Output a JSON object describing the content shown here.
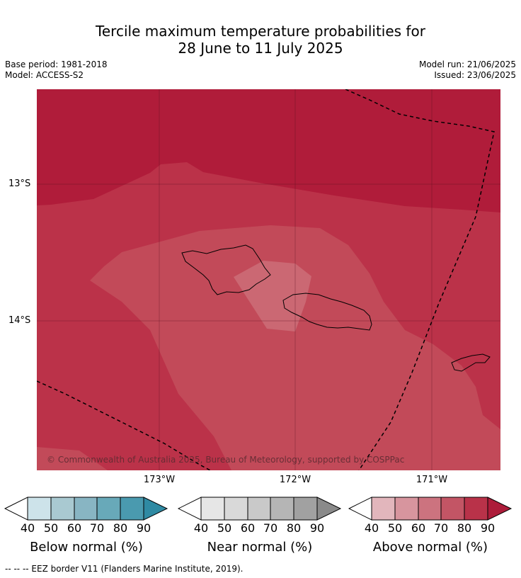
{
  "title_line1": "Tercile maximum temperature probabilities for",
  "title_line2": "28 June to 11 July 2025",
  "meta_left": [
    "Base period: 1981-2018",
    "Model: ACCESS-S2"
  ],
  "meta_right": [
    "Model run: 21/06/2025",
    "Issued: 23/06/2025"
  ],
  "copyright": "© Commonwealth of Australia 2025, Bureau of Meteorology, supported by COSPPac",
  "lat_labels": [
    "13°S",
    "14°S"
  ],
  "lon_labels": [
    "173°W",
    "172°W",
    "171°W"
  ],
  "colorbars": [
    {
      "title": "Below normal (%)",
      "ticks": [
        "40",
        "50",
        "60",
        "70",
        "80",
        "90"
      ],
      "colors": [
        "#cde3ea",
        "#a9c9d1",
        "#88b5c3",
        "#68a9b9",
        "#4a9aaf",
        "#2f8aa3"
      ]
    },
    {
      "title": "Near normal (%)",
      "ticks": [
        "40",
        "50",
        "60",
        "70",
        "80",
        "90"
      ],
      "colors": [
        "#e6e6e6",
        "#d9d9d9",
        "#c9c9c9",
        "#b5b5b5",
        "#a1a1a1",
        "#8a8a8a"
      ]
    },
    {
      "title": "Above normal (%)",
      "ticks": [
        "40",
        "50",
        "60",
        "70",
        "80",
        "90"
      ],
      "colors": [
        "#e2b6bc",
        "#d7959e",
        "#cc737f",
        "#c35565",
        "#b93249",
        "#ad1c3a"
      ]
    }
  ],
  "footer": "--  --  -- EEZ border V11 (Flanders Marine Institute, 2019)."
}
